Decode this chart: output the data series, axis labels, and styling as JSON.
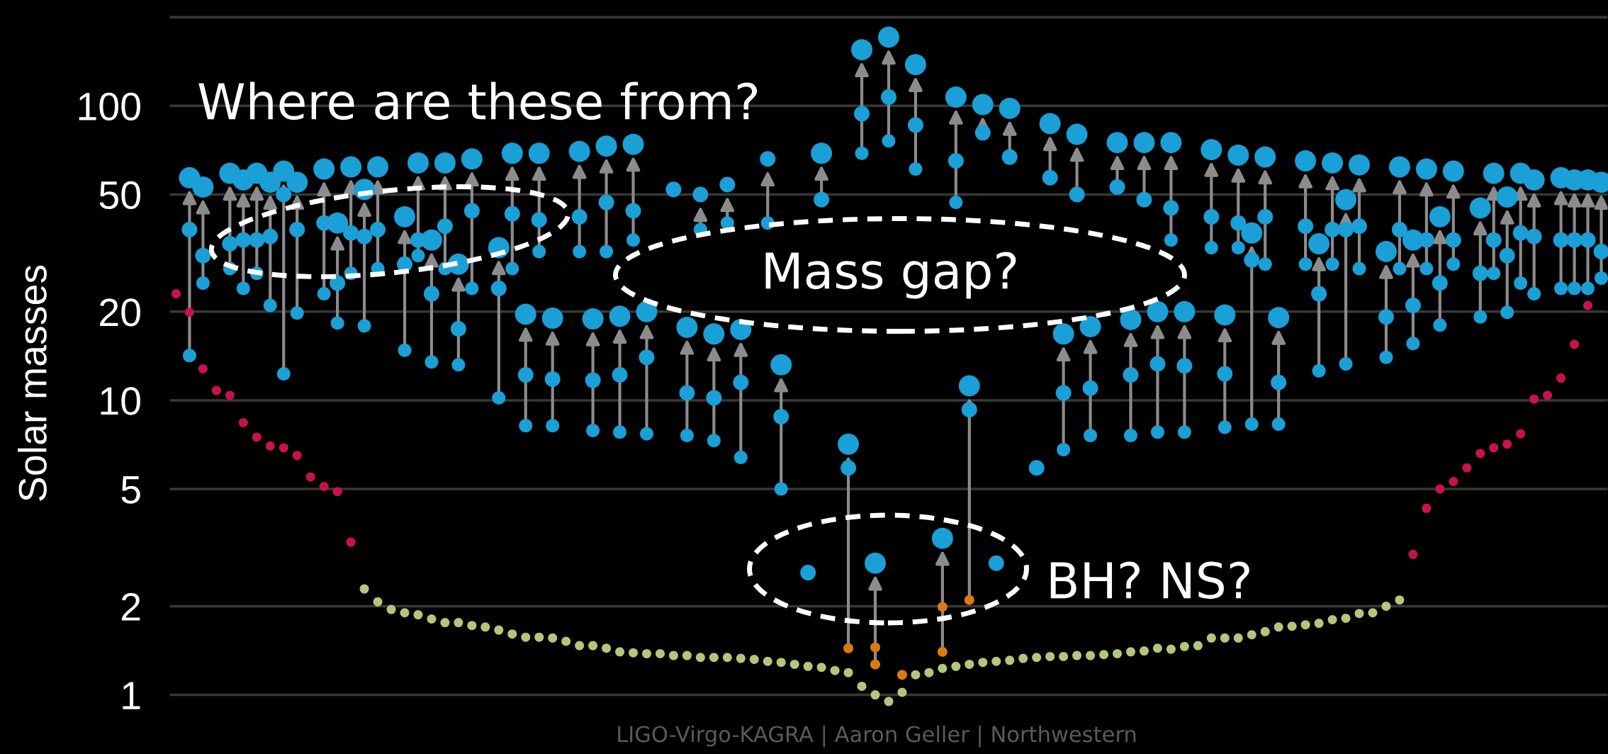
{
  "chart_data": {
    "type": "scatter",
    "ylabel": "Solar masses",
    "log": "y",
    "grid": "y",
    "tick_labels": "y",
    "marker": "circle",
    "ylim": [
      0.63,
      207
    ],
    "yticks": [
      1,
      2,
      5,
      10,
      20,
      50,
      100,
      {
        "value": 200,
        "label": null
      }
    ],
    "annotations": [
      "Where are these from?",
      "Mass gap?",
      "BH? NS?",
      "LIGO-Virgo-KAGRA | Aaron Geller | Northwestern"
    ],
    "categories": [
      null,
      null,
      null,
      null,
      null,
      null,
      null,
      null,
      null,
      null,
      null,
      null,
      null,
      null,
      null,
      null,
      null,
      null,
      null,
      null,
      null,
      null,
      null,
      null,
      null,
      null,
      null,
      null,
      null,
      null,
      null,
      null,
      null,
      null,
      null,
      null,
      null,
      null,
      null,
      null,
      null,
      null,
      null,
      null,
      null,
      null,
      null,
      null,
      null,
      null,
      null,
      null,
      null,
      null,
      null,
      null,
      null,
      null,
      null,
      null,
      null,
      null,
      null,
      null,
      null,
      null,
      null,
      null,
      null,
      null,
      null,
      null,
      null,
      null,
      null,
      null,
      null,
      null,
      null,
      null,
      null,
      null,
      null,
      null,
      null,
      null,
      null,
      null,
      null,
      null,
      null,
      null,
      null,
      null,
      null,
      null,
      null,
      null,
      null,
      null,
      null,
      null,
      null,
      null,
      null,
      null,
      null
    ],
    "series": [
      {
        "color": "#c8124f",
        "values": [
          23,
          19.9,
          12.8,
          10.8,
          10.4,
          8.4,
          7.5,
          7.0,
          6.9,
          6.5,
          5.5,
          5.1,
          4.9,
          3.3,
          null,
          null,
          null,
          null,
          null,
          null,
          null,
          null,
          null,
          null,
          null,
          null,
          null,
          null,
          null,
          null,
          null,
          null,
          null,
          null,
          null,
          null,
          null,
          null,
          null,
          null,
          null,
          null,
          null,
          null,
          null,
          null,
          null,
          null,
          null,
          null,
          null,
          null,
          null,
          null,
          null,
          null,
          null,
          null,
          null,
          null,
          null,
          null,
          null,
          null,
          null,
          null,
          null,
          null,
          null,
          null,
          null,
          null,
          null,
          null,
          null,
          null,
          null,
          null,
          null,
          null,
          null,
          null,
          null,
          null,
          null,
          null,
          null,
          null,
          null,
          null,
          null,
          null,
          3.0,
          4.3,
          5.0,
          5.3,
          5.9,
          6.6,
          6.9,
          7.1,
          7.7,
          10.1,
          10.4,
          11.9,
          15.5,
          21,
          null
        ]
      },
      {
        "color": "#b3c77c",
        "values": [
          null,
          null,
          null,
          null,
          null,
          null,
          null,
          null,
          null,
          null,
          null,
          null,
          null,
          null,
          2.29,
          2.07,
          1.95,
          1.9,
          1.87,
          1.81,
          1.76,
          1.76,
          1.72,
          1.7,
          1.66,
          1.61,
          1.57,
          1.57,
          1.56,
          1.52,
          1.47,
          1.47,
          1.44,
          1.4,
          1.39,
          1.38,
          1.38,
          1.36,
          1.36,
          1.34,
          1.34,
          1.34,
          1.33,
          1.32,
          1.3,
          1.29,
          1.27,
          1.25,
          1.24,
          1.21,
          1.19,
          1.07,
          1.0,
          0.95,
          1.02,
          1.17,
          1.19,
          1.23,
          1.25,
          1.27,
          1.29,
          1.3,
          1.31,
          1.33,
          1.34,
          1.35,
          1.35,
          1.36,
          1.36,
          1.37,
          1.38,
          1.4,
          1.41,
          1.44,
          1.43,
          1.46,
          1.47,
          1.56,
          1.56,
          1.56,
          1.6,
          1.64,
          1.7,
          1.71,
          1.73,
          1.75,
          1.8,
          1.82,
          1.89,
          1.9,
          2.0,
          2.1,
          null,
          null,
          null,
          null,
          null,
          null,
          null,
          null,
          null,
          null,
          null,
          null,
          null,
          null,
          null
        ]
      },
      {
        "color": "#1a9fd6",
        "values": [
          null,
          57,
          53,
          null,
          59,
          56,
          59,
          55,
          60,
          55,
          null,
          61,
          40,
          62,
          52,
          62,
          null,
          42,
          64,
          35,
          64,
          29,
          66,
          null,
          33,
          69,
          19.6,
          69,
          19.0,
          null,
          70,
          18.9,
          73,
          19.3,
          74,
          20,
          null,
          null,
          17.7,
          null,
          16.8,
          null,
          17.4,
          null,
          null,
          13.2,
          null,
          null,
          69,
          null,
          7.1,
          155,
          2.8,
          171,
          null,
          138,
          null,
          3.4,
          107,
          11.2,
          101,
          null,
          98,
          null,
          null,
          87,
          16.8,
          80,
          17.8,
          null,
          75,
          18.8,
          75,
          20,
          75,
          20,
          null,
          71,
          19.5,
          68,
          37,
          67,
          19.1,
          null,
          65,
          34,
          64,
          48,
          63,
          null,
          32,
          62,
          35,
          61,
          42,
          60,
          null,
          45,
          59,
          49,
          59,
          56,
          null,
          57,
          56,
          56,
          55
        ]
      },
      {
        "color": "#1a9fd6",
        "values": [
          null,
          38,
          31,
          null,
          34,
          35,
          35,
          36,
          50,
          38,
          null,
          40,
          25,
          37,
          36,
          38,
          null,
          29,
          35,
          23,
          39,
          17.5,
          44,
          null,
          24,
          43,
          12.2,
          41,
          11.8,
          null,
          42,
          11.7,
          47,
          12.2,
          44,
          14.0,
          null,
          52,
          10.6,
          50,
          10.2,
          54,
          11.5,
          null,
          66,
          8.8,
          null,
          2.6,
          48,
          null,
          5.9,
          94,
          null,
          107,
          null,
          86,
          null,
          null,
          65,
          9.3,
          81,
          2.8,
          67,
          null,
          5.9,
          57,
          10.6,
          50,
          11.0,
          null,
          53,
          12.2,
          48,
          13.3,
          45,
          13.1,
          null,
          42,
          12.3,
          40,
          30,
          42,
          11.5,
          null,
          39,
          23,
          38,
          38,
          39,
          null,
          19.2,
          38,
          21,
          35,
          25,
          35,
          null,
          27,
          35,
          31,
          37,
          36,
          null,
          35,
          35,
          35,
          32
        ]
      },
      {
        "color": "#1a9fd6",
        "values": [
          null,
          14.2,
          25,
          null,
          28,
          24,
          27,
          21,
          12.3,
          19.8,
          null,
          23,
          18.3,
          27,
          17.9,
          28,
          null,
          14.8,
          31,
          13.5,
          28,
          13.2,
          24,
          null,
          10.2,
          28,
          8.2,
          32,
          8.2,
          null,
          32,
          7.9,
          32,
          7.8,
          35,
          7.7,
          null,
          null,
          7.6,
          38,
          7.3,
          40,
          6.4,
          null,
          40,
          5.0,
          null,
          null,
          null,
          null,
          null,
          69,
          null,
          76,
          null,
          61,
          null,
          null,
          47,
          null,
          null,
          null,
          null,
          null,
          null,
          null,
          6.8,
          null,
          7.6,
          null,
          null,
          7.6,
          null,
          7.8,
          35,
          7.8,
          null,
          33,
          8.1,
          33,
          8.3,
          29,
          8.3,
          null,
          29,
          12.6,
          29,
          13.3,
          28,
          null,
          14.0,
          28,
          15.6,
          28,
          18.0,
          29,
          null,
          19.2,
          27,
          19.9,
          25,
          23,
          null,
          24,
          24,
          24,
          26
        ]
      },
      {
        "color": "#d97a14",
        "values": [
          null,
          null,
          null,
          null,
          null,
          null,
          null,
          null,
          null,
          null,
          null,
          null,
          null,
          null,
          null,
          null,
          null,
          null,
          null,
          null,
          null,
          null,
          null,
          null,
          null,
          null,
          null,
          null,
          null,
          null,
          null,
          null,
          null,
          null,
          null,
          null,
          null,
          null,
          null,
          null,
          null,
          null,
          null,
          null,
          null,
          null,
          null,
          null,
          null,
          null,
          1.44,
          null,
          1.45,
          null,
          1.17,
          null,
          null,
          1.99,
          null,
          2.1,
          null,
          null,
          null,
          null,
          null,
          null,
          null,
          null,
          null,
          null,
          null,
          null,
          null,
          null,
          null,
          null,
          null,
          null,
          null,
          null,
          null,
          null,
          null,
          null,
          null,
          null,
          null,
          null,
          null,
          null,
          null,
          null,
          null,
          null,
          null,
          null,
          null,
          null,
          null,
          null,
          null,
          null,
          null,
          null,
          null,
          null,
          null
        ]
      },
      {
        "color": "#d97a14",
        "values": [
          null,
          null,
          null,
          null,
          null,
          null,
          null,
          null,
          null,
          null,
          null,
          null,
          null,
          null,
          null,
          null,
          null,
          null,
          null,
          null,
          null,
          null,
          null,
          null,
          null,
          null,
          null,
          null,
          null,
          null,
          null,
          null,
          null,
          null,
          null,
          null,
          null,
          null,
          null,
          null,
          null,
          null,
          null,
          null,
          null,
          null,
          null,
          null,
          null,
          null,
          null,
          null,
          1.27,
          null,
          null,
          null,
          null,
          1.4,
          null,
          null,
          null,
          null,
          null,
          null,
          null,
          null,
          null,
          null,
          null,
          null,
          null,
          null,
          null,
          null,
          null,
          null,
          null,
          null,
          null,
          null,
          null,
          null,
          null,
          null,
          null,
          null,
          null,
          null,
          null,
          null,
          null,
          null,
          null,
          null,
          null,
          null,
          null,
          null,
          null,
          null,
          null,
          null,
          null,
          null,
          null,
          null,
          null
        ]
      }
    ]
  }
}
